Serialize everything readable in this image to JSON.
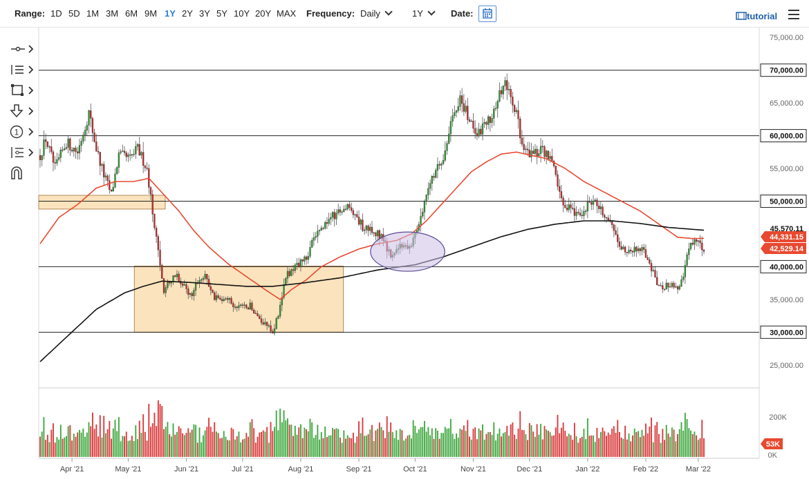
{
  "toolbar": {
    "range_label": "Range:",
    "ranges": [
      "1D",
      "5D",
      "1M",
      "3M",
      "6M",
      "9M",
      "1Y",
      "2Y",
      "3Y",
      "5Y",
      "10Y",
      "20Y",
      "MAX"
    ],
    "active_range": "1Y",
    "frequency_label": "Frequency:",
    "frequency_value": "Daily",
    "period_value": "1Y",
    "date_label": "Date:",
    "tutorial_label": "tutorial"
  },
  "side_tools": [
    "line-tool-icon",
    "list-tool-icon",
    "rectangle-tool-icon",
    "arrow-down-tool-icon",
    "number-marker-icon",
    "fibonacci-tool-icon",
    "magnet-icon"
  ],
  "colors": {
    "up": "#2ca02c",
    "down": "#d62728",
    "ma50": "#e8492f",
    "ma200": "#111111",
    "box_fill": "#fbe3bd",
    "box_stroke": "#b08a55",
    "circle_fill": "#cdbfe6",
    "circle_stroke": "#5a4a90",
    "price_tag_red": "#e8492f"
  },
  "chart_data": {
    "type": "candlestick",
    "x_ticks": [
      "Apr '21",
      "May '21",
      "Jun '21",
      "Jul '21",
      "Aug '21",
      "Sep '21",
      "Oct '21",
      "Nov '21",
      "Dec '21",
      "Jan '22",
      "Feb '22",
      "Mar '22"
    ],
    "y_ticks": [
      "25,000.00",
      "30,000.00",
      "35,000.00",
      "40,000.00",
      "45,000.00",
      "50,000.00",
      "55,000.00",
      "60,000.00",
      "65,000.00",
      "70,000.00",
      "75,000.00"
    ],
    "ylim": [
      21500,
      76500
    ],
    "horizontal_levels": [
      {
        "value": 70000,
        "label": "70,000.00"
      },
      {
        "value": 60000,
        "label": "60,000.00"
      },
      {
        "value": 50000,
        "label": "50,000.00"
      },
      {
        "value": 40000,
        "label": "40,000.00"
      },
      {
        "value": 30000,
        "label": "30,000.00"
      }
    ],
    "price_tags": [
      {
        "value": 45570.11,
        "label": "45,570.11",
        "style": "ma200"
      },
      {
        "value": 44331.15,
        "label": "44,331.15",
        "style": "ma50"
      },
      {
        "value": 42529.14,
        "label": "42,529.14",
        "style": "price"
      }
    ],
    "volume_ticks": [
      "200K",
      "0K"
    ],
    "volume_tag": "53K",
    "price_path": [
      [
        0,
        57000
      ],
      [
        3,
        59500
      ],
      [
        8,
        55000
      ],
      [
        14,
        59000
      ],
      [
        20,
        57500
      ],
      [
        26,
        63500
      ],
      [
        30,
        58000
      ],
      [
        34,
        54000
      ],
      [
        38,
        51000
      ],
      [
        42,
        57000
      ],
      [
        48,
        56500
      ],
      [
        52,
        58000
      ],
      [
        57,
        55000
      ],
      [
        60,
        48500
      ],
      [
        63,
        42000
      ],
      [
        66,
        36500
      ],
      [
        72,
        39000
      ],
      [
        80,
        35500
      ],
      [
        84,
        37500
      ],
      [
        88,
        39000
      ],
      [
        93,
        35000
      ],
      [
        100,
        35500
      ],
      [
        104,
        33500
      ],
      [
        112,
        34000
      ],
      [
        119,
        31500
      ],
      [
        124,
        30000
      ],
      [
        127,
        32500
      ],
      [
        131,
        38500
      ],
      [
        136,
        40000
      ],
      [
        141,
        41000
      ],
      [
        146,
        44000
      ],
      [
        152,
        46500
      ],
      [
        157,
        48000
      ],
      [
        160,
        48500
      ],
      [
        164,
        49500
      ],
      [
        168,
        48000
      ],
      [
        172,
        46000
      ],
      [
        178,
        45500
      ],
      [
        183,
        44500
      ],
      [
        187,
        41500
      ],
      [
        192,
        43500
      ],
      [
        196,
        43000
      ],
      [
        199,
        44000
      ],
      [
        203,
        47500
      ],
      [
        208,
        53500
      ],
      [
        214,
        56000
      ],
      [
        219,
        61500
      ],
      [
        224,
        66000
      ],
      [
        229,
        62000
      ],
      [
        234,
        60500
      ],
      [
        240,
        62500
      ],
      [
        244,
        65500
      ],
      [
        248,
        68000
      ],
      [
        254,
        63000
      ],
      [
        258,
        58000
      ],
      [
        262,
        57000
      ],
      [
        266,
        58000
      ],
      [
        270,
        57500
      ],
      [
        274,
        55000
      ],
      [
        277,
        51000
      ],
      [
        281,
        49000
      ],
      [
        285,
        48500
      ],
      [
        289,
        47500
      ],
      [
        293,
        50000
      ],
      [
        297,
        49500
      ],
      [
        301,
        47500
      ],
      [
        305,
        46500
      ],
      [
        310,
        43000
      ],
      [
        314,
        42000
      ],
      [
        320,
        43000
      ],
      [
        324,
        41500
      ],
      [
        328,
        38000
      ],
      [
        332,
        36500
      ],
      [
        336,
        37500
      ],
      [
        340,
        36500
      ],
      [
        343,
        38500
      ],
      [
        346,
        43000
      ],
      [
        350,
        44500
      ],
      [
        354,
        42500
      ]
    ],
    "ma50_path": [
      [
        0,
        43500
      ],
      [
        10,
        47500
      ],
      [
        20,
        49500
      ],
      [
        30,
        52000
      ],
      [
        40,
        53000
      ],
      [
        50,
        53000
      ],
      [
        58,
        53500
      ],
      [
        66,
        51000
      ],
      [
        74,
        48500
      ],
      [
        82,
        45500
      ],
      [
        90,
        43000
      ],
      [
        100,
        40500
      ],
      [
        110,
        38500
      ],
      [
        120,
        36500
      ],
      [
        128,
        35000
      ],
      [
        134,
        36500
      ],
      [
        142,
        38000
      ],
      [
        150,
        40000
      ],
      [
        160,
        41500
      ],
      [
        170,
        42700
      ],
      [
        180,
        43500
      ],
      [
        190,
        44000
      ],
      [
        198,
        45000
      ],
      [
        206,
        47000
      ],
      [
        214,
        49500
      ],
      [
        222,
        52000
      ],
      [
        230,
        54500
      ],
      [
        238,
        56000
      ],
      [
        246,
        57200
      ],
      [
        254,
        57500
      ],
      [
        262,
        57000
      ],
      [
        270,
        56500
      ],
      [
        280,
        55000
      ],
      [
        290,
        53000
      ],
      [
        300,
        51500
      ],
      [
        310,
        50000
      ],
      [
        320,
        48500
      ],
      [
        330,
        46500
      ],
      [
        340,
        44500
      ],
      [
        348,
        44300
      ],
      [
        354,
        44331
      ]
    ],
    "ma200_path": [
      [
        0,
        25500
      ],
      [
        15,
        29500
      ],
      [
        30,
        33500
      ],
      [
        45,
        36000
      ],
      [
        55,
        37000
      ],
      [
        65,
        37800
      ],
      [
        80,
        37600
      ],
      [
        95,
        37300
      ],
      [
        110,
        37000
      ],
      [
        124,
        37000
      ],
      [
        140,
        37500
      ],
      [
        160,
        38300
      ],
      [
        180,
        39500
      ],
      [
        200,
        40300
      ],
      [
        215,
        41500
      ],
      [
        230,
        43000
      ],
      [
        245,
        44500
      ],
      [
        260,
        45700
      ],
      [
        275,
        46500
      ],
      [
        290,
        47000
      ],
      [
        305,
        47000
      ],
      [
        320,
        46600
      ],
      [
        335,
        46000
      ],
      [
        354,
        45570
      ]
    ],
    "support_boxes": [
      {
        "x0": 0,
        "x1": 66,
        "y0": 48800,
        "y1": 50900
      },
      {
        "x0": 51,
        "x1": 161,
        "y0": 30000,
        "y1": 40100
      }
    ],
    "highlight_circle": {
      "xc": 196,
      "yc": 42300,
      "rx": 9,
      "ry": 3000
    }
  }
}
